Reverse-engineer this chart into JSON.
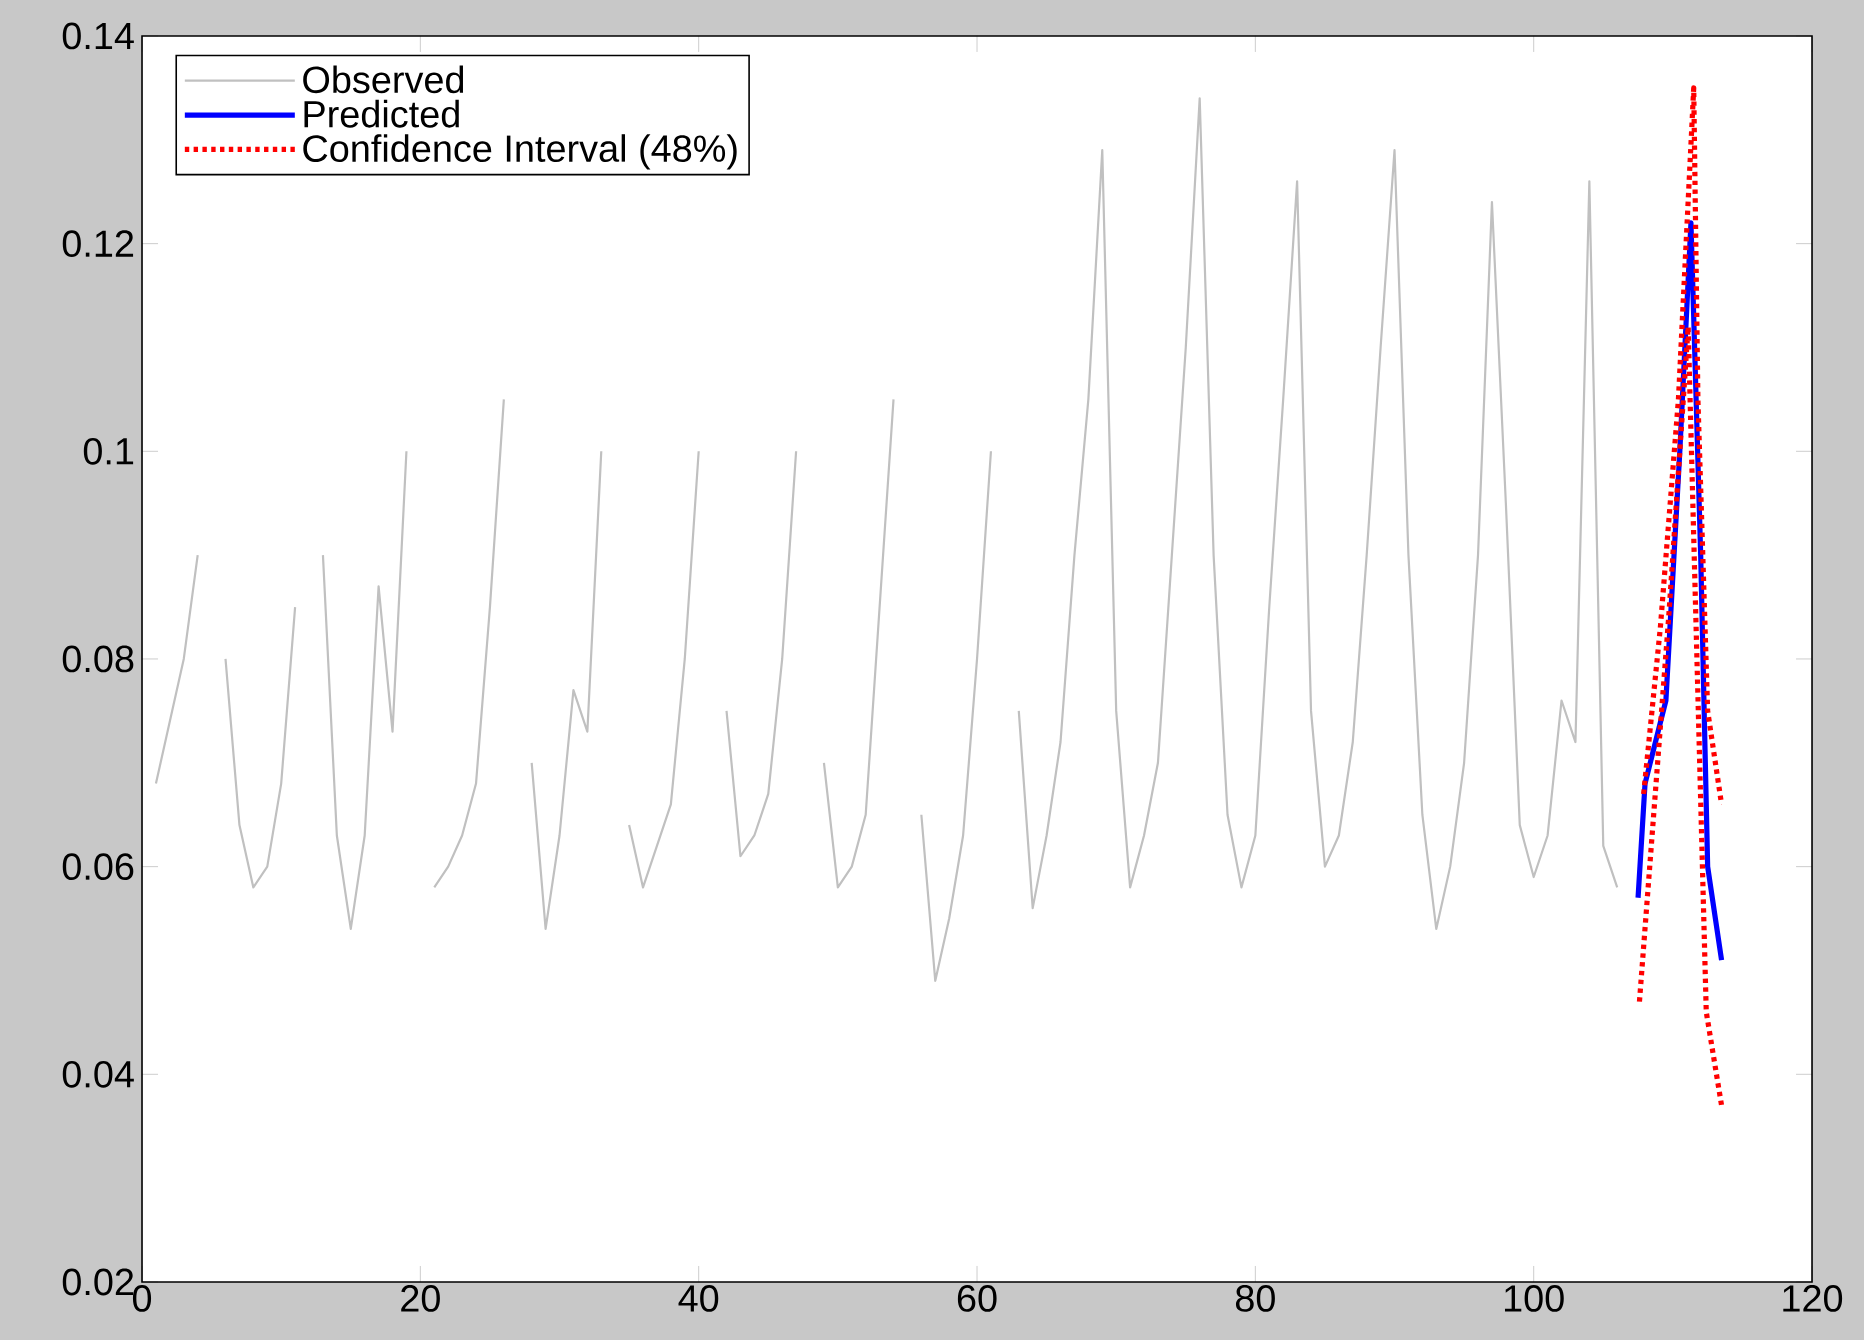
{
  "chart_data": {
    "type": "line",
    "xlim": [
      0,
      120
    ],
    "ylim": [
      0.02,
      0.14
    ],
    "xticks": [
      0,
      20,
      40,
      60,
      80,
      100,
      120
    ],
    "yticks": [
      0.02,
      0.04,
      0.06,
      0.08,
      0.1,
      0.12,
      0.14
    ],
    "grid": false,
    "legend": "top left",
    "marker": "none",
    "series": [
      {
        "name": "Observed",
        "color": "#c0c0c0",
        "line_style": "solid",
        "x": [
          1,
          2,
          3,
          4,
          5,
          6,
          7,
          8,
          9,
          10,
          11,
          12,
          13,
          14,
          15,
          16,
          17,
          18,
          19,
          20,
          21,
          22,
          23,
          24,
          25,
          26,
          27,
          28,
          29,
          30,
          31,
          32,
          33,
          34,
          35,
          36,
          37,
          38,
          39,
          40,
          41,
          42,
          43,
          44,
          45,
          46,
          47,
          48,
          49,
          50,
          51,
          52,
          53,
          54,
          55,
          56,
          57,
          58,
          59,
          60,
          61,
          62,
          63,
          64,
          65,
          66,
          67,
          68,
          69,
          70,
          71,
          72,
          73,
          74,
          75,
          76,
          77,
          78,
          79,
          80,
          81,
          82,
          83,
          84,
          85,
          86,
          87,
          88,
          89,
          90,
          91,
          92,
          93,
          94,
          95,
          96,
          97,
          98,
          99,
          100,
          101,
          102,
          103,
          104,
          105,
          106
        ],
        "values": [
          0.068,
          0.074,
          0.08,
          0.09,
          null,
          0.08,
          0.064,
          0.058,
          0.06,
          0.068,
          0.085,
          null,
          0.09,
          0.063,
          0.054,
          0.063,
          0.087,
          0.073,
          0.1,
          null,
          0.058,
          0.06,
          0.063,
          0.068,
          0.085,
          0.105,
          null,
          0.07,
          0.054,
          0.063,
          0.077,
          0.073,
          0.1,
          null,
          0.064,
          0.058,
          0.062,
          0.066,
          0.08,
          0.1,
          null,
          0.075,
          0.061,
          0.063,
          0.067,
          0.08,
          0.1,
          null,
          0.07,
          0.058,
          0.06,
          0.065,
          0.085,
          0.105,
          null,
          0.065,
          0.049,
          0.055,
          0.063,
          0.08,
          0.1,
          null,
          0.075,
          0.056,
          0.063,
          0.072,
          0.09,
          0.105,
          0.129,
          0.075,
          0.058,
          0.063,
          0.07,
          0.09,
          0.11,
          0.134,
          0.09,
          0.065,
          0.058,
          0.063,
          0.085,
          0.105,
          0.126,
          0.075,
          0.06,
          0.063,
          0.072,
          0.09,
          0.11,
          0.129,
          0.09,
          0.065,
          0.054,
          0.06,
          0.07,
          0.09,
          0.124,
          0.095,
          0.064,
          0.059,
          0.063,
          0.076,
          0.072,
          0.126,
          0.062,
          0.058
        ]
      },
      {
        "name": "Predicted",
        "color": "#0000ff",
        "line_style": "solid",
        "x": [
          107.5,
          108,
          109.5,
          110.5,
          111.3,
          112,
          112.5,
          113.5
        ],
        "values": [
          0.057,
          0.068,
          0.076,
          0.1,
          0.122,
          0.09,
          0.06,
          0.051
        ]
      },
      {
        "name": "Confidence Interval (48%)",
        "color": "#ff0000",
        "line_style": "dotted",
        "x": [
          107.9,
          109.1,
          110.4,
          111.5,
          111.8,
          112.5,
          113.5
        ],
        "values": [
          0.067,
          0.083,
          0.105,
          0.135,
          0.105,
          0.075,
          0.066
        ]
      },
      {
        "color": "#ff0000",
        "line_style": "dotted",
        "x": [
          107.6,
          109.7,
          111.1,
          112.4,
          113.5
        ],
        "values": [
          0.047,
          0.084,
          0.112,
          0.046,
          0.037
        ]
      }
    ]
  }
}
